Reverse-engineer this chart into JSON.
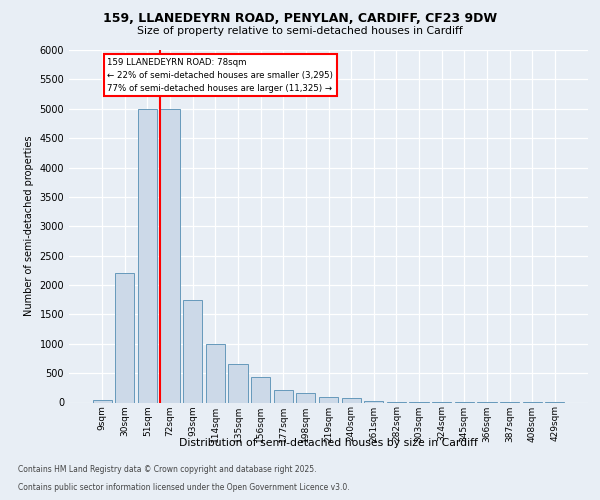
{
  "title_line1": "159, LLANEDEYRN ROAD, PENYLAN, CARDIFF, CF23 9DW",
  "title_line2": "Size of property relative to semi-detached houses in Cardiff",
  "xlabel": "Distribution of semi-detached houses by size in Cardiff",
  "ylabel": "Number of semi-detached properties",
  "categories": [
    "9sqm",
    "30sqm",
    "51sqm",
    "72sqm",
    "93sqm",
    "114sqm",
    "135sqm",
    "156sqm",
    "177sqm",
    "198sqm",
    "219sqm",
    "240sqm",
    "261sqm",
    "282sqm",
    "303sqm",
    "324sqm",
    "345sqm",
    "366sqm",
    "387sqm",
    "408sqm",
    "429sqm"
  ],
  "values": [
    50,
    2200,
    5000,
    5000,
    1750,
    1000,
    650,
    430,
    220,
    160,
    100,
    75,
    30,
    15,
    8,
    5,
    3,
    3,
    3,
    3,
    3
  ],
  "bar_color": "#ccd9e8",
  "bar_edge_color": "#6699bb",
  "red_line_x": 2.575,
  "annotation_text_line1": "159 LLANEDEYRN ROAD: 78sqm",
  "annotation_text_line2": "← 22% of semi-detached houses are smaller (3,295)",
  "annotation_text_line3": "77% of semi-detached houses are larger (11,325) →",
  "ylim_max": 6000,
  "ytick_step": 500,
  "footer_line1": "Contains HM Land Registry data © Crown copyright and database right 2025.",
  "footer_line2": "Contains public sector information licensed under the Open Government Licence v3.0.",
  "bg_color": "#e8eef5",
  "grid_color": "#ffffff"
}
